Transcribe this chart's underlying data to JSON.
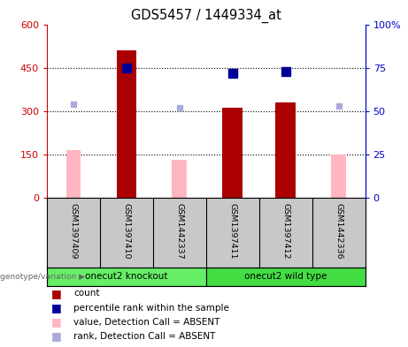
{
  "title": "GDS5457 / 1449334_at",
  "samples": [
    "GSM1397409",
    "GSM1397410",
    "GSM1442337",
    "GSM1397411",
    "GSM1397412",
    "GSM1442336"
  ],
  "count_values": [
    null,
    510,
    null,
    310,
    330,
    null
  ],
  "absent_value_values": [
    165,
    null,
    130,
    null,
    null,
    150
  ],
  "percentile_rank_values": [
    null,
    75,
    null,
    72,
    73,
    null
  ],
  "absent_rank_values": [
    54,
    null,
    52,
    null,
    null,
    53
  ],
  "groups": [
    {
      "label": "onecut2 knockout",
      "start": 0,
      "end": 3,
      "color": "#66EE66"
    },
    {
      "label": "onecut2 wild type",
      "start": 3,
      "end": 6,
      "color": "#44DD44"
    }
  ],
  "ylim_left": [
    0,
    600
  ],
  "ylim_right": [
    0,
    100
  ],
  "ytick_labels_left": [
    "0",
    "150",
    "300",
    "450",
    "600"
  ],
  "ytick_labels_right": [
    "0",
    "25",
    "50",
    "75",
    "100%"
  ],
  "left_axis_color": "#CC0000",
  "right_axis_color": "#0000CC",
  "bar_color_count": "#AA0000",
  "bar_color_absent": "#FFB6C1",
  "marker_color_rank": "#000099",
  "marker_color_absent_rank": "#AAAADD",
  "legend_items": [
    {
      "label": "count",
      "color": "#AA0000"
    },
    {
      "label": "percentile rank within the sample",
      "color": "#000099"
    },
    {
      "label": "value, Detection Call = ABSENT",
      "color": "#FFB6C1"
    },
    {
      "label": "rank, Detection Call = ABSENT",
      "color": "#AAAADD"
    }
  ],
  "genotype_label": "genotype/variation",
  "sample_bg_color": "#C8C8C8",
  "background_color": "#FFFFFF"
}
